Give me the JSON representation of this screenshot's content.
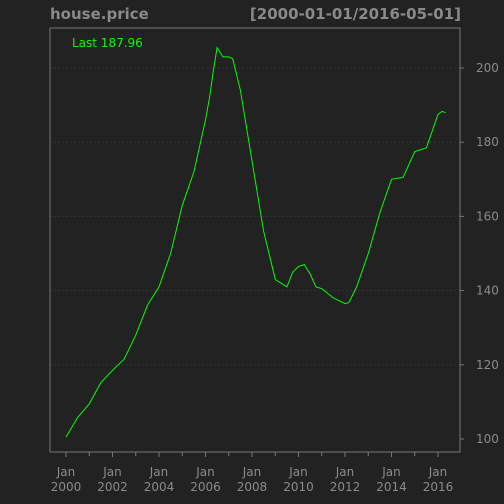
{
  "header": {
    "symbol": "house.price",
    "date_range": "[2000-01-01/2016-05-01]"
  },
  "last_label": "Last 187.96",
  "colors": {
    "background": "#222222",
    "line": "#00ff00",
    "axis_text": "#8a8a8a",
    "frame": "#777777",
    "grid": "#333333"
  },
  "chart_data": {
    "type": "line",
    "title": "house.price",
    "subtitle": "[2000-01-01/2016-05-01]",
    "xlabel": "",
    "ylabel": "",
    "xlim": [
      2000.0,
      2016.33
    ],
    "ylim": [
      96,
      212
    ],
    "grid": true,
    "y_axis_side": "right",
    "yticks": [
      100,
      120,
      140,
      160,
      180,
      200
    ],
    "xticks": [
      {
        "x": 2000,
        "month": "Jan",
        "year": "2000"
      },
      {
        "x": 2002,
        "month": "Jan",
        "year": "2002"
      },
      {
        "x": 2004,
        "month": "Jan",
        "year": "2004"
      },
      {
        "x": 2006,
        "month": "Jan",
        "year": "2006"
      },
      {
        "x": 2008,
        "month": "Jan",
        "year": "2008"
      },
      {
        "x": 2010,
        "month": "Jan",
        "year": "2010"
      },
      {
        "x": 2012,
        "month": "Jan",
        "year": "2012"
      },
      {
        "x": 2014,
        "month": "Jan",
        "year": "2014"
      },
      {
        "x": 2016,
        "month": "Jan",
        "year": "2016"
      }
    ],
    "minor_xticks": [
      2001,
      2003,
      2005,
      2007,
      2009,
      2011,
      2013,
      2015
    ],
    "series": [
      {
        "name": "house.price",
        "x": [
          2000.0,
          2000.5,
          2001.0,
          2001.5,
          2002.0,
          2002.5,
          2003.0,
          2003.5,
          2004.0,
          2004.5,
          2005.0,
          2005.5,
          2006.0,
          2006.17,
          2006.33,
          2006.5,
          2006.75,
          2007.0,
          2007.17,
          2007.5,
          2008.0,
          2008.5,
          2009.0,
          2009.5,
          2009.75,
          2010.0,
          2010.25,
          2010.5,
          2010.75,
          2011.0,
          2011.5,
          2012.0,
          2012.17,
          2012.5,
          2013.0,
          2013.5,
          2014.0,
          2014.5,
          2015.0,
          2015.5,
          2016.0,
          2016.17,
          2016.33
        ],
        "values": [
          100.5,
          105.8,
          109.5,
          115.2,
          118.5,
          121.5,
          128.0,
          136.0,
          141.0,
          150.0,
          163.0,
          172.0,
          186.0,
          192.0,
          199.0,
          205.5,
          203.0,
          203.0,
          202.5,
          194.0,
          175.0,
          156.0,
          143.0,
          141.0,
          145.0,
          146.5,
          147.0,
          144.5,
          141.0,
          140.5,
          138.0,
          136.5,
          136.8,
          141.0,
          150.0,
          161.0,
          170.0,
          170.5,
          177.5,
          178.5,
          187.5,
          188.3,
          187.96
        ]
      }
    ]
  }
}
